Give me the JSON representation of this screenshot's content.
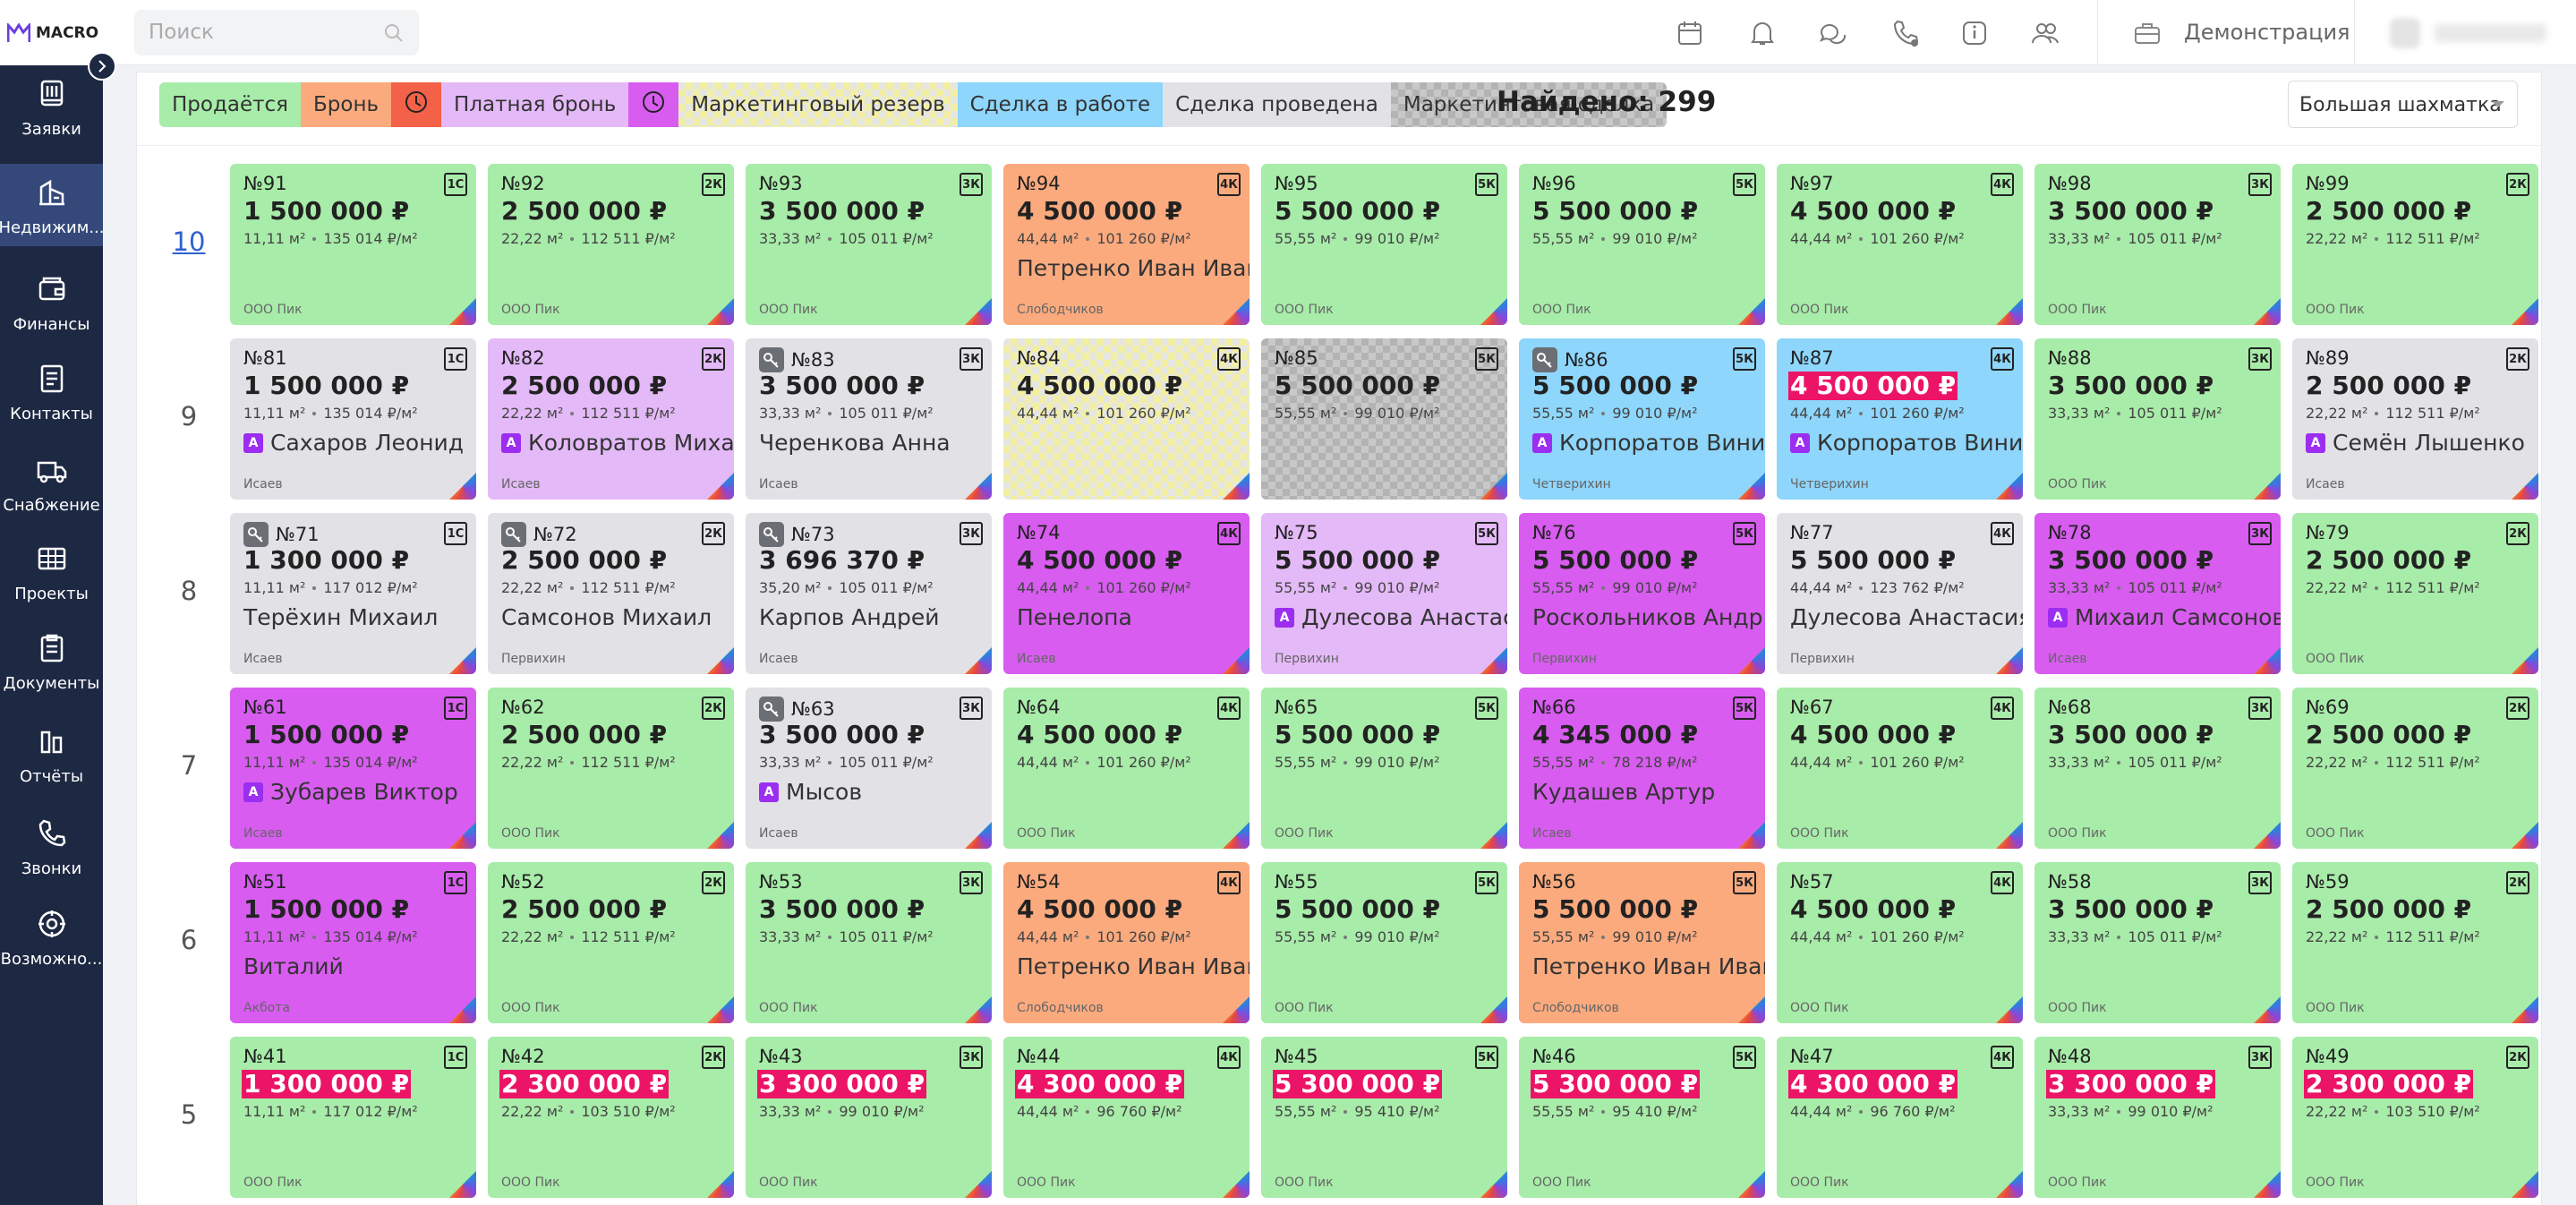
{
  "sidebar": {
    "logo": "MACRO",
    "active": 1,
    "items": [
      "Заявки",
      "Недвижим...",
      "Финансы",
      "Контакты",
      "Снабжение",
      "Проекты",
      "Документы",
      "Отчёты",
      "Звонки",
      "Возможно..."
    ]
  },
  "topbar": {
    "search": "Поиск",
    "account": "Демонстрация"
  },
  "legend": [
    {
      "label": "Продаётся",
      "color": "#a8eca9"
    },
    {
      "label": "Бронь",
      "color": "#fbaa7e"
    },
    {
      "icon": "clock",
      "color": "#f26148"
    },
    {
      "label": "Платная бронь",
      "color": "#e4b9f8"
    },
    {
      "icon": "clock",
      "color": "#d85cf0"
    },
    {
      "label": "Маркетинговый резерв",
      "color": "#f2efa4",
      "pattern": "#e6e6e0"
    },
    {
      "label": "Сделка в работе",
      "color": "#8ed6fb"
    },
    {
      "label": "Сделка проведена",
      "color": "#e2e2e6"
    },
    {
      "label": "Маркетинговая сделка",
      "color": "#c8c8c8",
      "pattern": "#b3b3b3"
    }
  ],
  "found": "Найдено: 299",
  "view": "Большая шахматка",
  "badge": "A",
  "floors": [
    {
      "label": "10",
      "link": true,
      "cards": [
        {
          "n": "№91",
          "r": "1С",
          "p": "1 500 000 ₽",
          "a": "11,11 м²",
          "m": "135 014 ₽/м²",
          "o": "ООО Пик",
          "s": 0
        },
        {
          "n": "№92",
          "r": "2К",
          "p": "2 500 000 ₽",
          "a": "22,22 м²",
          "m": "112 511 ₽/м²",
          "o": "ООО Пик",
          "s": 0
        },
        {
          "n": "№93",
          "r": "3К",
          "p": "3 500 000 ₽",
          "a": "33,33 м²",
          "m": "105 011 ₽/м²",
          "o": "ООО Пик",
          "s": 0
        },
        {
          "n": "№94",
          "r": "4К",
          "p": "4 500 000 ₽",
          "a": "44,44 м²",
          "m": "101 260 ₽/м²",
          "b": "Петренко Иван Иван…",
          "o": "Слободчиков",
          "s": 1
        },
        {
          "n": "№95",
          "r": "5К",
          "p": "5 500 000 ₽",
          "a": "55,55 м²",
          "m": "99 010 ₽/м²",
          "o": "ООО Пик",
          "s": 0
        },
        {
          "n": "№96",
          "r": "5К",
          "p": "5 500 000 ₽",
          "a": "55,55 м²",
          "m": "99 010 ₽/м²",
          "o": "ООО Пик",
          "s": 0
        },
        {
          "n": "№97",
          "r": "4К",
          "p": "4 500 000 ₽",
          "a": "44,44 м²",
          "m": "101 260 ₽/м²",
          "o": "ООО Пик",
          "s": 0
        },
        {
          "n": "№98",
          "r": "3К",
          "p": "3 500 000 ₽",
          "a": "33,33 м²",
          "m": "105 011 ₽/м²",
          "o": "ООО Пик",
          "s": 0
        },
        {
          "n": "№99",
          "r": "2К",
          "p": "2 500 000 ₽",
          "a": "22,22 м²",
          "m": "112 511 ₽/м²",
          "o": "ООО Пик",
          "s": 0
        }
      ]
    },
    {
      "label": "9",
      "cards": [
        {
          "n": "№81",
          "r": "1С",
          "p": "1 500 000 ₽",
          "a": "11,11 м²",
          "m": "135 014 ₽/м²",
          "b": "Сахаров Леонид",
          "ab": true,
          "o": "Исаев",
          "s": 7
        },
        {
          "n": "№82",
          "r": "2К",
          "p": "2 500 000 ₽",
          "a": "22,22 м²",
          "m": "112 511 ₽/м²",
          "b": "Коловратов Миха…",
          "ab": true,
          "o": "Исаев",
          "s": 3
        },
        {
          "n": "№83",
          "k": true,
          "r": "3К",
          "p": "3 500 000 ₽",
          "a": "33,33 м²",
          "m": "105 011 ₽/м²",
          "b": "Черенкова Анна",
          "o": "Исаев",
          "s": 7
        },
        {
          "n": "№84",
          "r": "4К",
          "p": "4 500 000 ₽",
          "a": "44,44 м²",
          "m": "101 260 ₽/м²",
          "s": 5
        },
        {
          "n": "№85",
          "r": "5К",
          "p": "5 500 000 ₽",
          "a": "55,55 м²",
          "m": "99 010 ₽/м²",
          "s": 8
        },
        {
          "n": "№86",
          "k": true,
          "r": "5К",
          "p": "5 500 000 ₽",
          "a": "55,55 м²",
          "m": "99 010 ₽/м²",
          "b": "Корпоратов Вини…",
          "ab": true,
          "o": "Четверихин",
          "s": 6
        },
        {
          "n": "№87",
          "r": "4К",
          "p": "4 500 000 ₽",
          "h": true,
          "a": "44,44 м²",
          "m": "101 260 ₽/м²",
          "b": "Корпоратов Вини…",
          "ab": true,
          "o": "Четверихин",
          "s": 6
        },
        {
          "n": "№88",
          "r": "3К",
          "p": "3 500 000 ₽",
          "a": "33,33 м²",
          "m": "105 011 ₽/м²",
          "o": "ООО Пик",
          "s": 0
        },
        {
          "n": "№89",
          "r": "2К",
          "p": "2 500 000 ₽",
          "a": "22,22 м²",
          "m": "112 511 ₽/м²",
          "b": "Семён Лышенко",
          "ab": true,
          "o": "Исаев",
          "s": 7
        }
      ]
    },
    {
      "label": "8",
      "cards": [
        {
          "n": "№71",
          "k": true,
          "r": "1С",
          "p": "1 300 000 ₽",
          "a": "11,11 м²",
          "m": "117 012 ₽/м²",
          "b": "Терёхин Михаил",
          "o": "Исаев",
          "s": 7
        },
        {
          "n": "№72",
          "k": true,
          "r": "2К",
          "p": "2 500 000 ₽",
          "a": "22,22 м²",
          "m": "112 511 ₽/м²",
          "b": "Самсонов Михаил",
          "o": "Первихин",
          "s": 7
        },
        {
          "n": "№73",
          "k": true,
          "r": "3К",
          "p": "3 696 370 ₽",
          "a": "35,20 м²",
          "m": "105 011 ₽/м²",
          "b": "Карпов Андрей",
          "o": "Исаев",
          "s": 7
        },
        {
          "n": "№74",
          "r": "4К",
          "p": "4 500 000 ₽",
          "a": "44,44 м²",
          "m": "101 260 ₽/м²",
          "b": "Пенелопа",
          "o": "Исаев",
          "s": 4
        },
        {
          "n": "№75",
          "r": "5К",
          "p": "5 500 000 ₽",
          "a": "55,55 м²",
          "m": "99 010 ₽/м²",
          "b": "Дулесова Анастас…",
          "ab": true,
          "o": "Первихин",
          "s": 3
        },
        {
          "n": "№76",
          "r": "5К",
          "p": "5 500 000 ₽",
          "a": "55,55 м²",
          "m": "99 010 ₽/м²",
          "b": "Роскольников Андр…",
          "o": "Первихин",
          "s": 4
        },
        {
          "n": "№77",
          "r": "4К",
          "p": "5 500 000 ₽",
          "a": "44,44 м²",
          "m": "123 762 ₽/м²",
          "b": "Дулесова Анастасия",
          "o": "Первихин",
          "s": 7
        },
        {
          "n": "№78",
          "r": "3К",
          "p": "3 500 000 ₽",
          "a": "33,33 м²",
          "m": "105 011 ₽/м²",
          "b": "Михаил Самсонов",
          "ab": true,
          "o": "Исаев",
          "s": 4
        },
        {
          "n": "№79",
          "r": "2К",
          "p": "2 500 000 ₽",
          "a": "22,22 м²",
          "m": "112 511 ₽/м²",
          "o": "ООО Пик",
          "s": 0
        }
      ]
    },
    {
      "label": "7",
      "cards": [
        {
          "n": "№61",
          "r": "1С",
          "p": "1 500 000 ₽",
          "a": "11,11 м²",
          "m": "135 014 ₽/м²",
          "b": "Зубарев Виктор",
          "ab": true,
          "o": "Исаев",
          "s": 4
        },
        {
          "n": "№62",
          "r": "2К",
          "p": "2 500 000 ₽",
          "a": "22,22 м²",
          "m": "112 511 ₽/м²",
          "o": "ООО Пик",
          "s": 0
        },
        {
          "n": "№63",
          "k": true,
          "r": "3К",
          "p": "3 500 000 ₽",
          "a": "33,33 м²",
          "m": "105 011 ₽/м²",
          "b": "Мысов",
          "ab": true,
          "o": "Исаев",
          "s": 7
        },
        {
          "n": "№64",
          "r": "4К",
          "p": "4 500 000 ₽",
          "a": "44,44 м²",
          "m": "101 260 ₽/м²",
          "o": "ООО Пик",
          "s": 0
        },
        {
          "n": "№65",
          "r": "5К",
          "p": "5 500 000 ₽",
          "a": "55,55 м²",
          "m": "99 010 ₽/м²",
          "o": "ООО Пик",
          "s": 0
        },
        {
          "n": "№66",
          "r": "5К",
          "p": "4 345 000 ₽",
          "a": "55,55 м²",
          "m": "78 218 ₽/м²",
          "b": "Кудашев Артур",
          "o": "Исаев",
          "s": 4
        },
        {
          "n": "№67",
          "r": "4К",
          "p": "4 500 000 ₽",
          "a": "44,44 м²",
          "m": "101 260 ₽/м²",
          "o": "ООО Пик",
          "s": 0
        },
        {
          "n": "№68",
          "r": "3К",
          "p": "3 500 000 ₽",
          "a": "33,33 м²",
          "m": "105 011 ₽/м²",
          "o": "ООО Пик",
          "s": 0
        },
        {
          "n": "№69",
          "r": "2К",
          "p": "2 500 000 ₽",
          "a": "22,22 м²",
          "m": "112 511 ₽/м²",
          "o": "ООО Пик",
          "s": 0
        }
      ]
    },
    {
      "label": "6",
      "cards": [
        {
          "n": "№51",
          "r": "1С",
          "p": "1 500 000 ₽",
          "a": "11,11 м²",
          "m": "135 014 ₽/м²",
          "b": "Виталий",
          "o": "Акбота",
          "s": 4
        },
        {
          "n": "№52",
          "r": "2К",
          "p": "2 500 000 ₽",
          "a": "22,22 м²",
          "m": "112 511 ₽/м²",
          "o": "ООО Пик",
          "s": 0
        },
        {
          "n": "№53",
          "r": "3К",
          "p": "3 500 000 ₽",
          "a": "33,33 м²",
          "m": "105 011 ₽/м²",
          "o": "ООО Пик",
          "s": 0
        },
        {
          "n": "№54",
          "r": "4К",
          "p": "4 500 000 ₽",
          "a": "44,44 м²",
          "m": "101 260 ₽/м²",
          "b": "Петренко Иван Иван…",
          "o": "Слободчиков",
          "s": 1
        },
        {
          "n": "№55",
          "r": "5К",
          "p": "5 500 000 ₽",
          "a": "55,55 м²",
          "m": "99 010 ₽/м²",
          "o": "ООО Пик",
          "s": 0
        },
        {
          "n": "№56",
          "r": "5К",
          "p": "5 500 000 ₽",
          "a": "55,55 м²",
          "m": "99 010 ₽/м²",
          "b": "Петренко Иван Иван…",
          "o": "Слободчиков",
          "s": 1
        },
        {
          "n": "№57",
          "r": "4К",
          "p": "4 500 000 ₽",
          "a": "44,44 м²",
          "m": "101 260 ₽/м²",
          "o": "ООО Пик",
          "s": 0
        },
        {
          "n": "№58",
          "r": "3К",
          "p": "3 500 000 ₽",
          "a": "33,33 м²",
          "m": "105 011 ₽/м²",
          "o": "ООО Пик",
          "s": 0
        },
        {
          "n": "№59",
          "r": "2К",
          "p": "2 500 000 ₽",
          "a": "22,22 м²",
          "m": "112 511 ₽/м²",
          "o": "ООО Пик",
          "s": 0
        }
      ]
    },
    {
      "label": "5",
      "cards": [
        {
          "n": "№41",
          "r": "1С",
          "p": "1 300 000 ₽",
          "h": true,
          "a": "11,11 м²",
          "m": "117 012 ₽/м²",
          "o": "ООО Пик",
          "s": 0
        },
        {
          "n": "№42",
          "r": "2К",
          "p": "2 300 000 ₽",
          "h": true,
          "a": "22,22 м²",
          "m": "103 510 ₽/м²",
          "o": "ООО Пик",
          "s": 0
        },
        {
          "n": "№43",
          "r": "3К",
          "p": "3 300 000 ₽",
          "h": true,
          "a": "33,33 м²",
          "m": "99 010 ₽/м²",
          "o": "ООО Пик",
          "s": 0
        },
        {
          "n": "№44",
          "r": "4К",
          "p": "4 300 000 ₽",
          "h": true,
          "a": "44,44 м²",
          "m": "96 760 ₽/м²",
          "o": "ООО Пик",
          "s": 0
        },
        {
          "n": "№45",
          "r": "5К",
          "p": "5 300 000 ₽",
          "h": true,
          "a": "55,55 м²",
          "m": "95 410 ₽/м²",
          "o": "ООО Пик",
          "s": 0
        },
        {
          "n": "№46",
          "r": "5К",
          "p": "5 300 000 ₽",
          "h": true,
          "a": "55,55 м²",
          "m": "95 410 ₽/м²",
          "o": "ООО Пик",
          "s": 0
        },
        {
          "n": "№47",
          "r": "4К",
          "p": "4 300 000 ₽",
          "h": true,
          "a": "44,44 м²",
          "m": "96 760 ₽/м²",
          "o": "ООО Пик",
          "s": 0
        },
        {
          "n": "№48",
          "r": "3К",
          "p": "3 300 000 ₽",
          "h": true,
          "a": "33,33 м²",
          "m": "99 010 ₽/м²",
          "o": "ООО Пик",
          "s": 0
        },
        {
          "n": "№49",
          "r": "2К",
          "p": "2 300 000 ₽",
          "h": true,
          "a": "22,22 м²",
          "m": "103 510 ₽/м²",
          "o": "ООО Пик",
          "s": 0
        }
      ]
    }
  ]
}
